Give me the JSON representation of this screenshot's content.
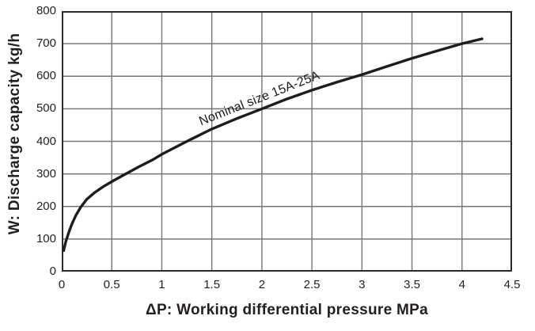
{
  "chart_data": {
    "type": "line",
    "xlabel": "ΔP: Working differential pressure MPa",
    "ylabel": "W: Discharge capacity kg/h",
    "xlim": [
      0,
      4.5
    ],
    "ylim": [
      0,
      800
    ],
    "x_ticks": [
      0,
      0.5,
      1,
      1.5,
      2,
      2.5,
      3,
      3.5,
      4,
      4.5
    ],
    "x_tick_labels": [
      "0",
      "0.5",
      "1",
      "1.5",
      "2",
      "2.5",
      "3",
      "3.5",
      "4",
      "4.5"
    ],
    "y_ticks": [
      0,
      100,
      200,
      300,
      400,
      500,
      600,
      700,
      800
    ],
    "y_tick_labels": [
      "0",
      "100",
      "200",
      "300",
      "400",
      "500",
      "600",
      "700",
      "800"
    ],
    "grid": true,
    "legend_position": "none",
    "series": [
      {
        "name": "Nominal size 15A-25A",
        "x": [
          0.02,
          0.04,
          0.07,
          0.1,
          0.14,
          0.19,
          0.25,
          0.33,
          0.42,
          0.52,
          0.64,
          0.77,
          0.9,
          1.0,
          1.25,
          1.5,
          1.75,
          2.0,
          2.25,
          2.5,
          2.75,
          3.0,
          3.25,
          3.5,
          3.75,
          4.0,
          4.2
        ],
        "y": [
          65,
          92,
          120,
          145,
          172,
          198,
          222,
          243,
          262,
          280,
          300,
          322,
          342,
          360,
          400,
          438,
          470,
          500,
          530,
          557,
          582,
          605,
          630,
          655,
          678,
          700,
          715
        ]
      }
    ],
    "annotation": {
      "text": "Nominal size 15A-25A",
      "rotation_deg": -21.5
    }
  },
  "colors": {
    "curve": "#1d1d1d",
    "grid": "#767676",
    "border": "#2b2b2b",
    "text": "#231f20",
    "background": "#ffffff"
  }
}
